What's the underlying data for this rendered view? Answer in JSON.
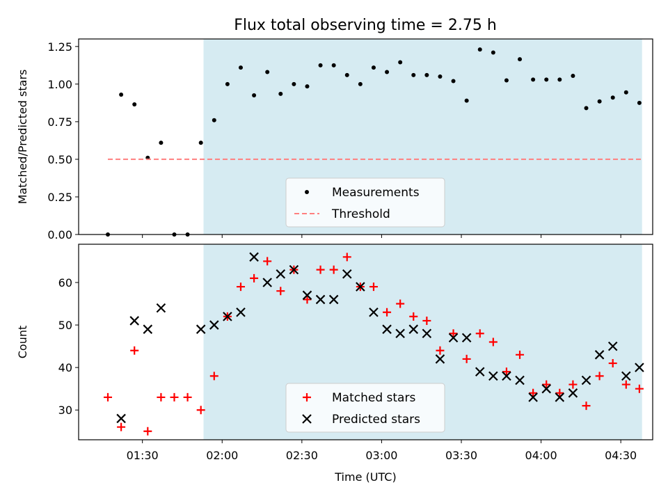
{
  "title": "Flux total observing time = 2.75 h",
  "shade_color": "#add8e6",
  "chart_data": [
    {
      "type": "scatter",
      "ylabel": "Matched/Predicted stars",
      "ylim": [
        0,
        1.3
      ],
      "xlim": [
        "01:06",
        "04:42"
      ],
      "shaded_interval": [
        "01:53",
        "04:38"
      ],
      "yticks": [
        0.0,
        0.25,
        0.5,
        0.75,
        1.0,
        1.25
      ],
      "ytick_labels": [
        "0.00",
        "0.25",
        "0.50",
        "0.75",
        "1.00",
        "1.25"
      ],
      "legend": {
        "position": "lower-center",
        "entries": [
          "Measurements",
          "Threshold"
        ]
      },
      "series": [
        {
          "name": "Measurements",
          "color": "#000000",
          "marker": "dot",
          "points": [
            [
              "01:17",
              0.0
            ],
            [
              "01:22",
              0.93
            ],
            [
              "01:27",
              0.865
            ],
            [
              "01:32",
              0.51
            ],
            [
              "01:37",
              0.61
            ],
            [
              "01:42",
              0.0
            ],
            [
              "01:47",
              0.0
            ],
            [
              "01:52",
              0.61
            ],
            [
              "01:57",
              0.76
            ],
            [
              "02:02",
              1.0
            ],
            [
              "02:07",
              1.11
            ],
            [
              "02:12",
              0.925
            ],
            [
              "02:17",
              1.08
            ],
            [
              "02:22",
              0.935
            ],
            [
              "02:27",
              1.0
            ],
            [
              "02:32",
              0.985
            ],
            [
              "02:37",
              1.125
            ],
            [
              "02:42",
              1.125
            ],
            [
              "02:47",
              1.06
            ],
            [
              "02:52",
              1.0
            ],
            [
              "02:57",
              1.11
            ],
            [
              "03:02",
              1.08
            ],
            [
              "03:07",
              1.145
            ],
            [
              "03:12",
              1.06
            ],
            [
              "03:17",
              1.06
            ],
            [
              "03:22",
              1.05
            ],
            [
              "03:27",
              1.02
            ],
            [
              "03:32",
              0.89
            ],
            [
              "03:37",
              1.23
            ],
            [
              "03:42",
              1.21
            ],
            [
              "03:47",
              1.025
            ],
            [
              "03:52",
              1.165
            ],
            [
              "03:57",
              1.03
            ],
            [
              "04:02",
              1.03
            ],
            [
              "04:07",
              1.03
            ],
            [
              "04:12",
              1.055
            ],
            [
              "04:17",
              0.84
            ],
            [
              "04:22",
              0.885
            ],
            [
              "04:27",
              0.91
            ],
            [
              "04:32",
              0.945
            ],
            [
              "04:37",
              0.875
            ]
          ]
        },
        {
          "name": "Threshold",
          "color": "#ff7f7f",
          "style": "dashed",
          "points": [
            [
              "01:17",
              0.5
            ],
            [
              "04:38",
              0.5
            ]
          ]
        }
      ]
    },
    {
      "type": "scatter",
      "ylabel": "Count",
      "xlabel": "Time (UTC)",
      "ylim": [
        23,
        69
      ],
      "xlim": [
        "01:06",
        "04:42"
      ],
      "shaded_interval": [
        "01:53",
        "04:38"
      ],
      "yticks": [
        30,
        40,
        50,
        60
      ],
      "ytick_labels": [
        "30",
        "40",
        "50",
        "60"
      ],
      "xticks": [
        "01:30",
        "02:00",
        "02:30",
        "03:00",
        "03:30",
        "04:00",
        "04:30"
      ],
      "legend": {
        "position": "lower-center",
        "entries": [
          "Matched stars",
          "Predicted stars"
        ]
      },
      "series": [
        {
          "name": "Matched stars",
          "color": "#ff0000",
          "marker": "plus",
          "points": [
            [
              "01:17",
              33
            ],
            [
              "01:22",
              26
            ],
            [
              "01:27",
              44
            ],
            [
              "01:32",
              25
            ],
            [
              "01:37",
              33
            ],
            [
              "01:42",
              33
            ],
            [
              "01:47",
              33
            ],
            [
              "01:52",
              30
            ],
            [
              "01:57",
              38
            ],
            [
              "02:02",
              52
            ],
            [
              "02:07",
              59
            ],
            [
              "02:12",
              61
            ],
            [
              "02:17",
              65
            ],
            [
              "02:22",
              58
            ],
            [
              "02:27",
              63
            ],
            [
              "02:32",
              56
            ],
            [
              "02:37",
              63
            ],
            [
              "02:42",
              63
            ],
            [
              "02:47",
              66
            ],
            [
              "02:52",
              59
            ],
            [
              "02:57",
              59
            ],
            [
              "03:02",
              53
            ],
            [
              "03:07",
              55
            ],
            [
              "03:12",
              52
            ],
            [
              "03:17",
              51
            ],
            [
              "03:22",
              44
            ],
            [
              "03:27",
              48
            ],
            [
              "03:32",
              42
            ],
            [
              "03:37",
              48
            ],
            [
              "03:42",
              46
            ],
            [
              "03:47",
              39
            ],
            [
              "03:52",
              43
            ],
            [
              "03:57",
              34
            ],
            [
              "04:02",
              36
            ],
            [
              "04:07",
              34
            ],
            [
              "04:12",
              36
            ],
            [
              "04:17",
              31
            ],
            [
              "04:22",
              38
            ],
            [
              "04:27",
              41
            ],
            [
              "04:32",
              36
            ],
            [
              "04:37",
              35
            ]
          ]
        },
        {
          "name": "Predicted stars",
          "color": "#000000",
          "marker": "x",
          "points": [
            [
              "01:22",
              28
            ],
            [
              "01:27",
              51
            ],
            [
              "01:32",
              49
            ],
            [
              "01:37",
              54
            ],
            [
              "01:52",
              49
            ],
            [
              "01:57",
              50
            ],
            [
              "02:02",
              52
            ],
            [
              "02:07",
              53
            ],
            [
              "02:12",
              66
            ],
            [
              "02:17",
              60
            ],
            [
              "02:22",
              62
            ],
            [
              "02:27",
              63
            ],
            [
              "02:32",
              57
            ],
            [
              "02:37",
              56
            ],
            [
              "02:42",
              56
            ],
            [
              "02:47",
              62
            ],
            [
              "02:52",
              59
            ],
            [
              "02:57",
              53
            ],
            [
              "03:02",
              49
            ],
            [
              "03:07",
              48
            ],
            [
              "03:12",
              49
            ],
            [
              "03:17",
              48
            ],
            [
              "03:22",
              42
            ],
            [
              "03:27",
              47
            ],
            [
              "03:32",
              47
            ],
            [
              "03:37",
              39
            ],
            [
              "03:42",
              38
            ],
            [
              "03:47",
              38
            ],
            [
              "03:52",
              37
            ],
            [
              "03:57",
              33
            ],
            [
              "04:02",
              35
            ],
            [
              "04:07",
              33
            ],
            [
              "04:12",
              34
            ],
            [
              "04:17",
              37
            ],
            [
              "04:22",
              43
            ],
            [
              "04:27",
              45
            ],
            [
              "04:32",
              38
            ],
            [
              "04:37",
              40
            ]
          ]
        }
      ]
    }
  ]
}
